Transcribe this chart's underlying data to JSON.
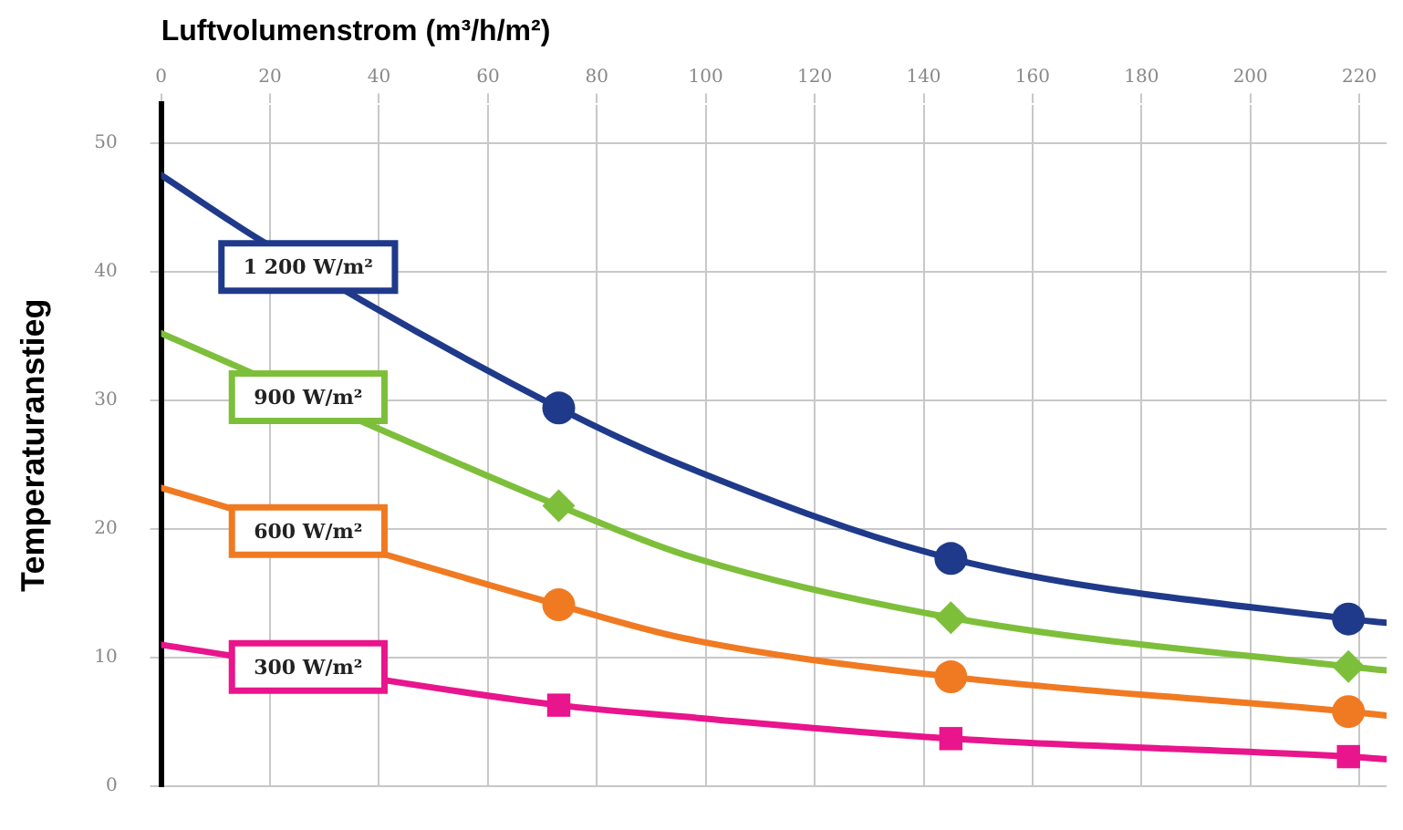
{
  "chart_data": {
    "type": "line",
    "xlabel": "Luftvolumenstrom (m³/h/m²)",
    "ylabel": "Temperaturanstieg",
    "xlim": [
      0,
      225
    ],
    "xticks": [
      0,
      20,
      40,
      60,
      80,
      100,
      120,
      140,
      160,
      180,
      200,
      220
    ],
    "ylim": [
      0,
      53
    ],
    "yticks": [
      0,
      10,
      20,
      30,
      40,
      50
    ],
    "grid": true,
    "legend": false,
    "series": [
      {
        "name": "1 200 W/m²",
        "color": "#1f3a8a",
        "marker": "none",
        "x": [
          0,
          18,
          73,
          96,
          145,
          218,
          225
        ],
        "values": [
          47.5,
          42.5,
          29.4,
          24.9,
          17.7,
          13,
          12.7
        ]
      },
      {
        "name": "900 W/m²",
        "color": "#7dbf3a",
        "marker": "none",
        "x": [
          0,
          73,
          96,
          145,
          218,
          225
        ],
        "values": [
          35.2,
          21.8,
          18,
          13.1,
          9.3,
          9
        ]
      },
      {
        "name": "600 W/m²",
        "color": "#f07a22",
        "marker": "none",
        "x": [
          0,
          73,
          96,
          145,
          218,
          225
        ],
        "values": [
          23.2,
          14.1,
          11.5,
          8.5,
          5.8,
          5.5
        ]
      },
      {
        "name": "300 W/m²",
        "color": "#e8158c",
        "marker": "none",
        "x": [
          0,
          73,
          96,
          145,
          218,
          225
        ],
        "values": [
          11,
          6.3,
          5.4,
          3.7,
          2.3,
          2.1
        ]
      },
      {
        "type": "scatter",
        "color": "#1f3a8a",
        "marker": "circle",
        "x": [
          73,
          145,
          218
        ],
        "values": [
          29.4,
          17.7,
          13
        ]
      },
      {
        "type": "scatter",
        "color": "#7dbf3a",
        "marker": "diamond",
        "x": [
          73,
          145,
          218
        ],
        "values": [
          21.8,
          13.1,
          9.3
        ]
      },
      {
        "type": "scatter",
        "color": "#f07a22",
        "marker": "circle",
        "x": [
          73,
          145,
          218
        ],
        "values": [
          14.1,
          8.5,
          5.8
        ]
      },
      {
        "type": "scatter",
        "color": "#e8158c",
        "marker": "square",
        "x": [
          73,
          145,
          218
        ],
        "values": [
          6.3,
          3.7,
          2.3
        ]
      }
    ]
  }
}
